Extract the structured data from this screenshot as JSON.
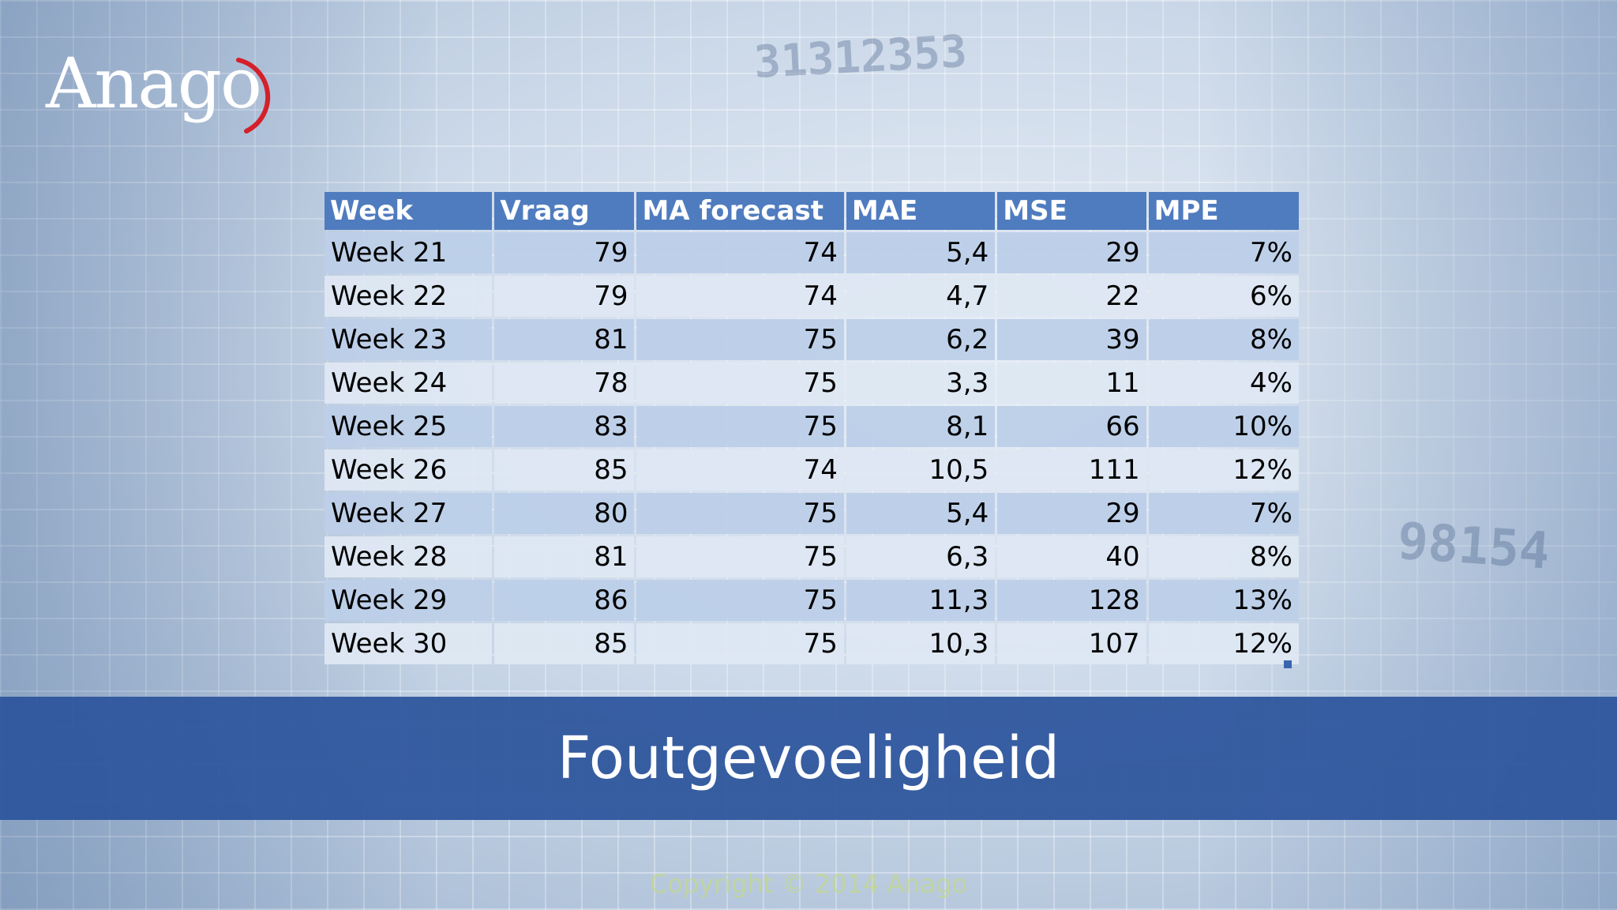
{
  "logo": {
    "text": "Anago",
    "accent_color": "#d4202a"
  },
  "table": {
    "headers": [
      "Week",
      "Vraag",
      "MA forecast",
      "MAE",
      "MSE",
      "MPE"
    ],
    "rows": [
      [
        "Week 21",
        "79",
        "74",
        "5,4",
        "29",
        "7%"
      ],
      [
        "Week 22",
        "79",
        "74",
        "4,7",
        "22",
        "6%"
      ],
      [
        "Week 23",
        "81",
        "75",
        "6,2",
        "39",
        "8%"
      ],
      [
        "Week 24",
        "78",
        "75",
        "3,3",
        "11",
        "4%"
      ],
      [
        "Week 25",
        "83",
        "75",
        "8,1",
        "66",
        "10%"
      ],
      [
        "Week 26",
        "85",
        "74",
        "10,5",
        "111",
        "12%"
      ],
      [
        "Week 27",
        "80",
        "75",
        "5,4",
        "29",
        "7%"
      ],
      [
        "Week 28",
        "81",
        "75",
        "6,3",
        "40",
        "8%"
      ],
      [
        "Week 29",
        "86",
        "75",
        "11,3",
        "128",
        "13%"
      ],
      [
        "Week 30",
        "85",
        "75",
        "10,3",
        "107",
        "12%"
      ]
    ],
    "header_color": "#4f7cbf"
  },
  "banner": {
    "title": "Foutgevoeligheid",
    "color": "#2c549c"
  },
  "footer": {
    "text": "Copyright © 2014 Anago"
  },
  "background": {
    "numbers": [
      "31312353",
      "98154"
    ]
  }
}
